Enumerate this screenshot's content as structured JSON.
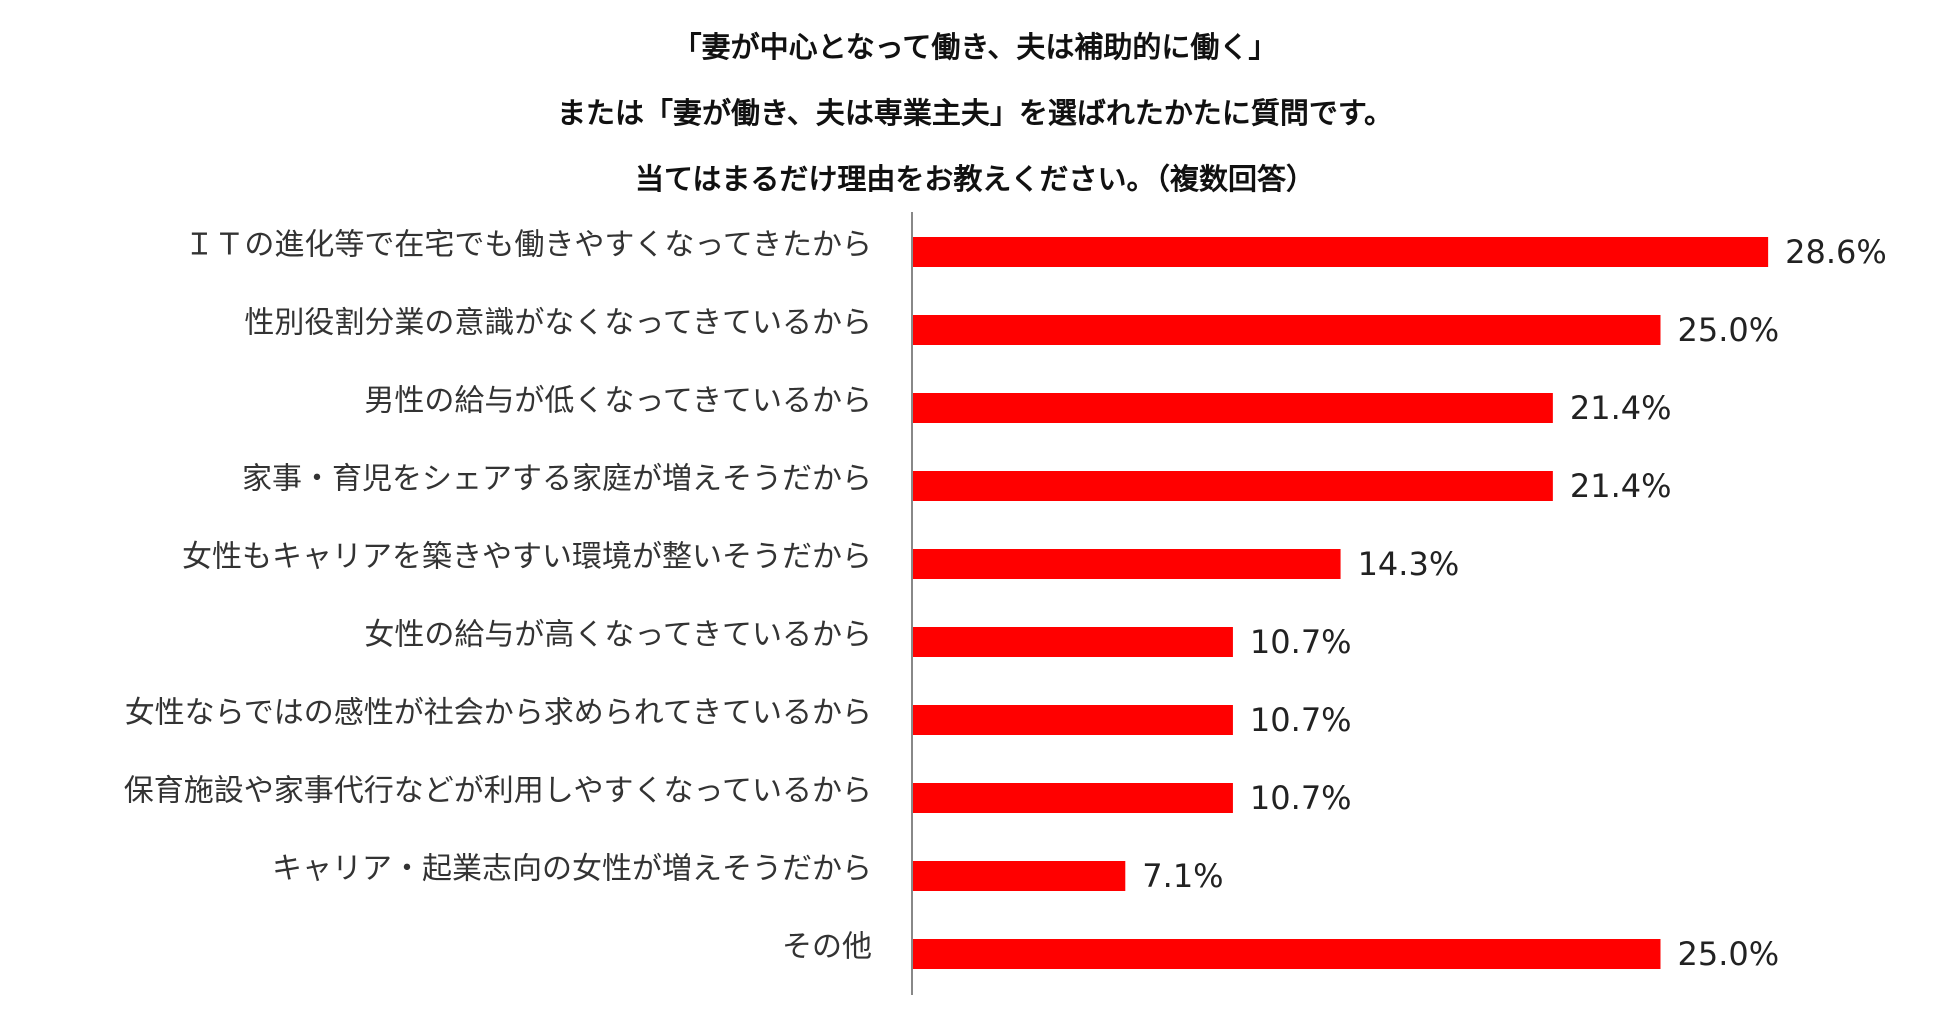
{
  "chart_data": {
    "type": "bar",
    "orientation": "horizontal",
    "title_lines": [
      "「妻が中心となって働き、夫は補助的に働く」",
      "または「妻が働き、夫は専業主夫」を選ばれたかたに質問です。",
      "当てはまるだけ理由をお教えください。（複数回答）"
    ],
    "categories": [
      "ＩＴの進化等で在宅でも働きやすくなってきたから",
      "性別役割分業の意識がなくなってきているから",
      "男性の給与が低くなってきているから",
      "家事・育児をシェアする家庭が増えそうだから",
      "女性もキャリアを築きやすい環境が整いそうだから",
      "女性の給与が高くなってきているから",
      "女性ならではの感性が社会から求められてきているから",
      "保育施設や家事代行などが利用しやすくなっているから",
      "キャリア・起業志向の女性が増えそうだから",
      "その他"
    ],
    "values": [
      28.6,
      25.0,
      21.4,
      21.4,
      14.3,
      10.7,
      10.7,
      10.7,
      7.1,
      25.0
    ],
    "value_labels": [
      "28.6%",
      "25.0%",
      "21.4%",
      "21.4%",
      "14.3%",
      "10.7%",
      "10.7%",
      "10.7%",
      "7.1%",
      "25.0%"
    ],
    "unit": "%",
    "xlim": [
      0,
      30
    ],
    "grid": false,
    "legend": "none",
    "bar_color": "#ff0000",
    "axis_color": "#888888"
  }
}
